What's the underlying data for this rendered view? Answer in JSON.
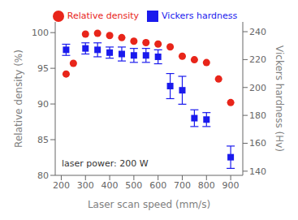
{
  "chart_data": {
    "type": "scatter",
    "xlabel": "Laser scan speed (mm/s)",
    "ylabel": "Relative density (%)",
    "y2label": "Vickers hardness (Hv)",
    "annotation": "laser power: 200 W",
    "xlim": [
      175,
      950
    ],
    "xticks": [
      200,
      300,
      400,
      500,
      600,
      700,
      800,
      900
    ],
    "ylim": [
      80,
      101.5
    ],
    "yticks": [
      80,
      85,
      90,
      95,
      100
    ],
    "y2lim": [
      137,
      247
    ],
    "y2ticks": [
      140,
      160,
      180,
      200,
      220,
      240
    ],
    "grid": false,
    "legend": "top",
    "series": [
      {
        "name": "Relative density",
        "color": "#e8251a",
        "marker": "circle",
        "x": [
          220,
          250,
          300,
          350,
          400,
          450,
          500,
          550,
          600,
          650,
          700,
          750,
          800,
          850,
          900
        ],
        "values": [
          94.2,
          95.7,
          99.8,
          99.9,
          99.6,
          99.3,
          98.8,
          98.6,
          98.4,
          98.0,
          96.7,
          96.2,
          95.8,
          93.5,
          90.2
        ]
      },
      {
        "name": "Vickers hardness",
        "color": "#1a1aed",
        "marker": "square",
        "axis": "y2",
        "x": [
          220,
          300,
          350,
          400,
          450,
          500,
          550,
          600,
          650,
          700,
          750,
          800,
          900
        ],
        "values": [
          227,
          228,
          227,
          225,
          224,
          223,
          223,
          222,
          201,
          198,
          178,
          177,
          150
        ],
        "error": [
          4,
          4,
          5,
          4,
          5,
          5,
          5,
          5,
          9,
          10,
          6,
          5,
          8
        ]
      }
    ]
  }
}
